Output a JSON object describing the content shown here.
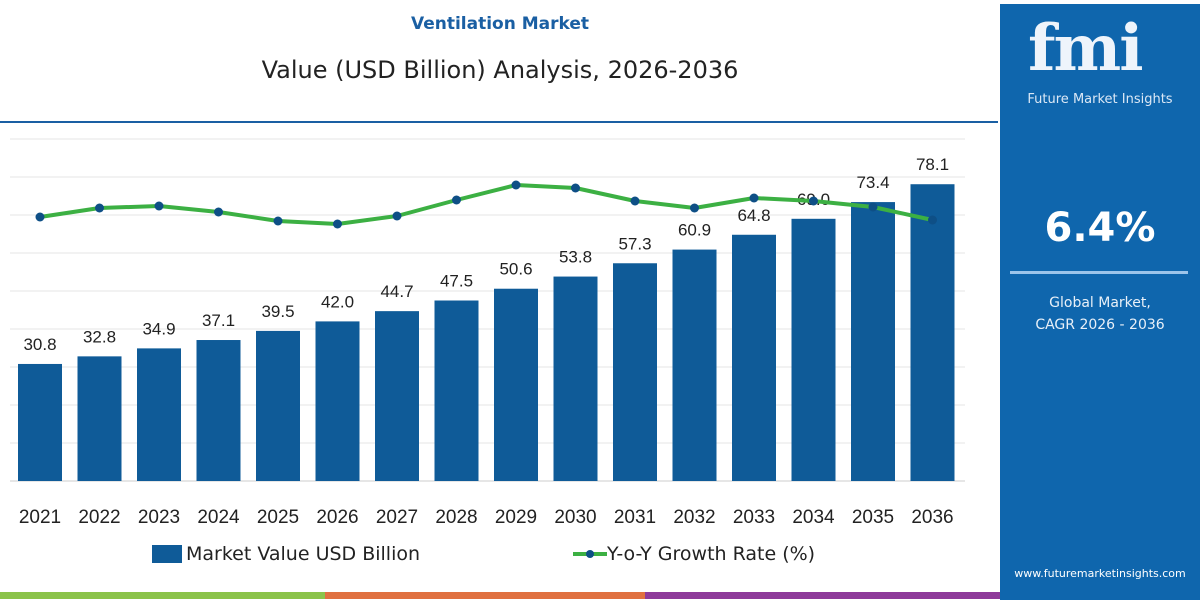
{
  "header": {
    "title": "Ventilation Market",
    "subtitle": "Value (USD Billion) Analysis, 2026-2036"
  },
  "panel": {
    "logo_text": "fmi",
    "brand": "Future Market Insights",
    "cagr": "6.4%",
    "cagr_label_line1": "Global Market,",
    "cagr_label_line2": "CAGR 2026 - 2036",
    "url": "www.futuremarketinsights.com"
  },
  "colors": {
    "bar": "#0f5b98",
    "line": "#3cb043",
    "marker": "#0e4f86",
    "panel": "#0f66ad",
    "strip": [
      "#8bc34a",
      "#e07040",
      "#8e3a9a"
    ]
  },
  "chart_data": {
    "type": "bar+line",
    "categories": [
      "2021",
      "2022",
      "2023",
      "2024",
      "2025",
      "2026",
      "2027",
      "2028",
      "2029",
      "2030",
      "2031",
      "2032",
      "2033",
      "2034",
      "2035",
      "2036"
    ],
    "ylim": [
      0,
      90
    ],
    "grid": true,
    "legend_position": "bottom",
    "series": [
      {
        "name": "Market Value USD Billion",
        "type": "bar",
        "values": [
          30.8,
          32.8,
          34.9,
          37.1,
          39.5,
          42.0,
          44.7,
          47.5,
          50.6,
          53.8,
          57.3,
          60.9,
          64.8,
          69.0,
          73.4,
          78.1
        ],
        "labels": [
          "30.8",
          "32.8",
          "34.9",
          "37.1",
          "39.5",
          "42.0",
          "44.7",
          "47.5",
          "50.6",
          "53.8",
          "57.3",
          "60.9",
          "64.8",
          "69.0",
          "73.4",
          "78.1"
        ]
      },
      {
        "name": "Y-o-Y Growth Rate (%)",
        "type": "line",
        "values": [
          4.3,
          5.2,
          5.4,
          4.8,
          3.9,
          3.6,
          4.4,
          6.0,
          7.5,
          7.2,
          5.9,
          5.2,
          6.2,
          5.9,
          5.3,
          4.0
        ]
      }
    ]
  }
}
